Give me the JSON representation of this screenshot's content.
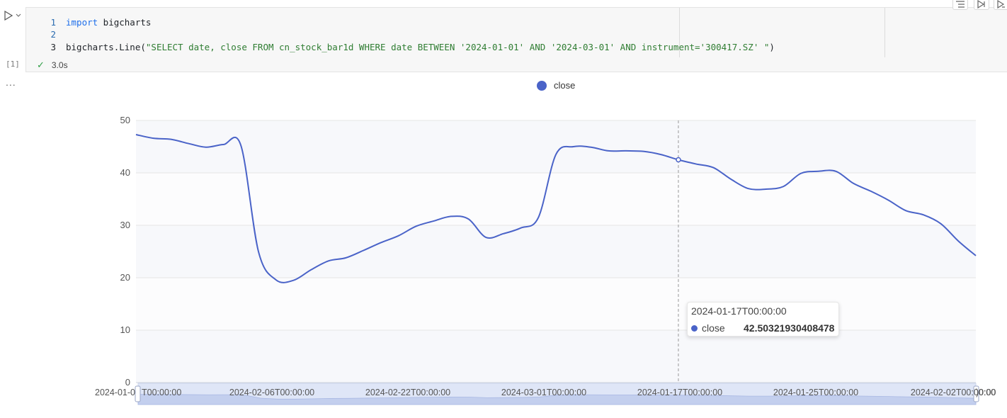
{
  "cell": {
    "lines": [
      {
        "num": "1",
        "parts": [
          {
            "t": "import",
            "c": "kw"
          },
          {
            "t": " bigcharts",
            "c": ""
          }
        ]
      },
      {
        "num": "2",
        "parts": []
      },
      {
        "num": "3",
        "parts": [
          {
            "t": "bigcharts.Line(",
            "c": ""
          },
          {
            "t": "\"SELECT date, close FROM cn_stock_bar1d WHERE date BETWEEN '2024-01-01' AND '2024-03-01' AND instrument='300417.SZ' \"",
            "c": "str"
          },
          {
            "t": ")",
            "c": ""
          }
        ]
      }
    ],
    "exec_count": "[1]",
    "status_time": "3.0s",
    "more": "..."
  },
  "colors": {
    "series": "#4a63c8",
    "check": "#2e9e44"
  },
  "icons": {
    "run": "play-icon",
    "run_menu": "chevron-down-icon",
    "status": "check-icon"
  },
  "chart_data": {
    "type": "line",
    "legend": [
      "close"
    ],
    "legend_position": "top-center",
    "y_ticks": [
      "0",
      "10",
      "20",
      "30",
      "40",
      "50"
    ],
    "ylim": [
      0,
      50
    ],
    "x_ticks": [
      "2024-01-0",
      "T00:00:00",
      "2024-02-06T00:00:00",
      "2024-02-22T00:00:00",
      "2024-03-01T00:00:00",
      "2024-01-17T00:00:00",
      "2024-01-25T00:00:00",
      "2024-02-02T00:00:00",
      ")0:00"
    ],
    "series": [
      {
        "name": "close",
        "values": [
          47.3,
          46.6,
          46.4,
          45.6,
          44.9,
          45.4,
          45.2,
          25.0,
          19.6,
          19.5,
          21.5,
          23.2,
          23.8,
          25.2,
          26.7,
          28.0,
          29.8,
          30.8,
          31.7,
          31.2,
          27.7,
          28.4,
          29.5,
          31.5,
          43.5,
          45.0,
          44.9,
          44.2,
          44.2,
          44.1,
          43.5,
          42.5,
          41.7,
          41.0,
          38.8,
          37.0,
          36.9,
          37.4,
          39.9,
          40.3,
          40.3,
          38.0,
          36.5,
          34.8,
          32.8,
          32.0,
          30.3,
          27.0,
          24.2
        ]
      }
    ],
    "grid": true,
    "hover": {
      "label": "2024-01-17T00:00:00",
      "series": "close",
      "value": "42.50321930408478",
      "index": 31
    },
    "data_zoom": {
      "start": 0,
      "end": 1
    }
  }
}
